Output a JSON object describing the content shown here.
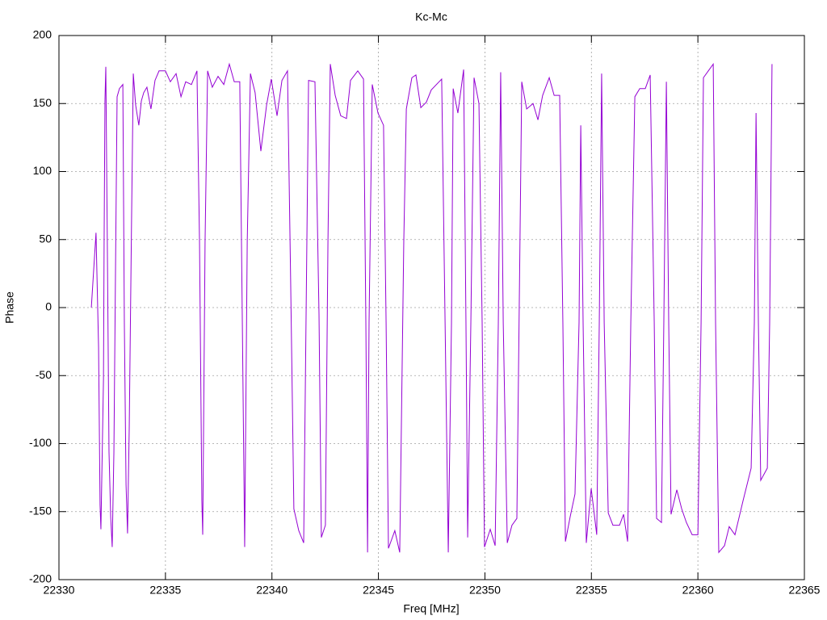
{
  "chart_data": {
    "type": "line",
    "title": "Kc-Mc",
    "xlabel": "Freq [MHz]",
    "ylabel": "Phase",
    "color": "#9400d3",
    "grid": true,
    "xlim": [
      22330,
      22365
    ],
    "xticks": [
      22330,
      22335,
      22340,
      22345,
      22350,
      22355,
      22360,
      22365
    ],
    "ylim": [
      -200,
      200
    ],
    "yticks": [
      -200,
      -150,
      -100,
      -50,
      0,
      50,
      100,
      150,
      200
    ],
    "x": [
      22331.52,
      22331.74,
      22331.86,
      22331.93,
      22331.97,
      22332.09,
      22332.12,
      22332.16,
      22332.2,
      22332.28,
      22332.35,
      22332.43,
      22332.5,
      22332.58,
      22332.65,
      22332.73,
      22332.84,
      22333.0,
      22333.07,
      22333.15,
      22333.22,
      22333.3,
      22333.41,
      22333.49,
      22333.6,
      22333.75,
      22333.87,
      22333.98,
      22334.13,
      22334.32,
      22334.51,
      22334.7,
      22335.0,
      22335.23,
      22335.5,
      22335.73,
      22335.95,
      22336.22,
      22336.48,
      22336.6,
      22336.71,
      22336.75,
      22336.86,
      22336.98,
      22337.2,
      22337.47,
      22337.74,
      22338.0,
      22338.23,
      22338.49,
      22338.61,
      22338.72,
      22338.84,
      22338.99,
      22339.21,
      22339.48,
      22339.75,
      22339.97,
      22340.24,
      22340.47,
      22340.73,
      22340.88,
      22341.03,
      22341.26,
      22341.49,
      22341.6,
      22341.72,
      22342.02,
      22342.21,
      22342.32,
      22342.51,
      22342.63,
      22342.74,
      22342.97,
      22343.23,
      22343.5,
      22343.69,
      22344.03,
      22344.3,
      22344.41,
      22344.49,
      22344.56,
      22344.71,
      22344.98,
      22345.24,
      22345.36,
      22345.47,
      22345.77,
      22346.0,
      22346.19,
      22346.31,
      22346.57,
      22346.76,
      22346.99,
      22347.25,
      22347.48,
      22347.97,
      22348.13,
      22348.28,
      22348.43,
      22348.51,
      22348.73,
      22349.0,
      22349.11,
      22349.19,
      22349.34,
      22349.49,
      22349.72,
      22349.87,
      22349.98,
      22350.25,
      22350.48,
      22350.63,
      22350.74,
      22350.86,
      22351.05,
      22351.27,
      22351.5,
      22351.73,
      22351.96,
      22352.26,
      22352.49,
      22352.71,
      22353.02,
      22353.25,
      22353.51,
      22353.66,
      22353.78,
      22354.0,
      22354.23,
      22354.42,
      22354.5,
      22354.61,
      22354.76,
      22354.99,
      22355.25,
      22355.37,
      22355.48,
      22355.6,
      22355.79,
      22356.01,
      22356.32,
      22356.51,
      22356.7,
      22356.85,
      22357.04,
      22357.27,
      22357.53,
      22357.76,
      22357.95,
      22358.06,
      22358.29,
      22358.4,
      22358.52,
      22358.63,
      22358.74,
      22359.01,
      22359.24,
      22359.46,
      22359.73,
      22360.0,
      22360.15,
      22360.26,
      22360.49,
      22360.72,
      22360.83,
      22360.98,
      22361.25,
      22361.47,
      22361.74,
      22362.12,
      22362.5,
      22362.65,
      22362.73,
      22362.84,
      22362.95,
      22363.26,
      22363.37,
      22363.48
    ],
    "values": [
      0,
      55,
      -29,
      -145,
      -163,
      -53,
      48,
      152,
      177,
      30,
      -106,
      -154,
      -176,
      -106,
      18,
      155,
      161,
      164,
      -11,
      -130,
      -166,
      -88,
      66,
      172,
      149,
      134,
      152,
      158,
      162,
      146,
      167,
      174,
      174,
      166,
      172,
      155,
      166,
      164,
      174,
      48,
      -142,
      -167,
      48,
      174,
      162,
      170,
      164,
      179,
      166,
      166,
      -11,
      -176,
      48,
      172,
      158,
      115,
      149,
      168,
      141,
      167,
      174,
      18,
      -148,
      -164,
      -173,
      -11,
      167,
      166,
      -5,
      -169,
      -160,
      48,
      179,
      156,
      141,
      139,
      167,
      174,
      168,
      -11,
      -180,
      -11,
      164,
      143,
      134,
      -11,
      -177,
      -164,
      -180,
      48,
      146,
      169,
      171,
      147,
      151,
      160,
      168,
      -11,
      -180,
      -11,
      161,
      143,
      175,
      -11,
      -169,
      -11,
      169,
      150,
      -11,
      -176,
      -163,
      -175,
      -11,
      173,
      -11,
      -173,
      -160,
      -155,
      166,
      146,
      150,
      138,
      156,
      169,
      156,
      156,
      -11,
      -172,
      -154,
      -137,
      -11,
      134,
      -11,
      -173,
      -133,
      -167,
      -11,
      172,
      -11,
      -151,
      -160,
      -160,
      -152,
      -172,
      -11,
      155,
      161,
      161,
      171,
      -11,
      -155,
      -158,
      -11,
      166,
      -11,
      -152,
      -134,
      -148,
      -158,
      -167,
      -167,
      -11,
      169,
      174,
      179,
      -11,
      -180,
      -175,
      -161,
      -167,
      -142,
      -118,
      -11,
      143,
      -11,
      -127,
      -118,
      -11,
      179
    ]
  }
}
